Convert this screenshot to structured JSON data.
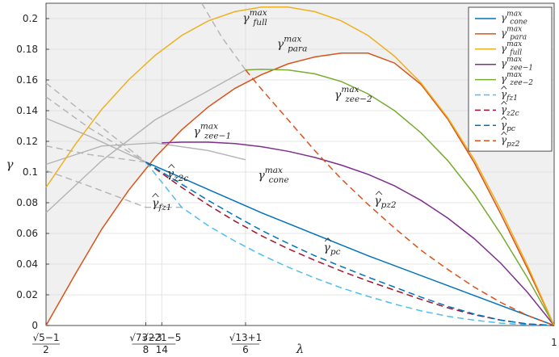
{
  "chart_data": {
    "type": "line",
    "xlabel": "λ",
    "ylabel": "γ",
    "xlim": [
      0.618,
      1.0
    ],
    "ylim": [
      0,
      0.21
    ],
    "grid": true,
    "legend_position": "top-right",
    "x_tick_labels": [
      {
        "x": 0.618,
        "num": "√5−1",
        "den": "2"
      },
      {
        "x": 0.693,
        "num": "√73−3",
        "den": "8"
      },
      {
        "x": 0.705,
        "num": "√221−5",
        "den": "14"
      },
      {
        "x": 0.768,
        "num": "√13+1",
        "den": "6"
      },
      {
        "x": 1.0,
        "num": "1",
        "den": ""
      }
    ],
    "y_ticks": [
      0,
      0.02,
      0.04,
      0.06,
      0.08,
      0.1,
      0.12,
      0.14,
      0.16,
      0.18,
      0.2
    ],
    "y_tick_labels": [
      "0",
      "0.02",
      "0.04",
      "0.06",
      "0.08",
      "0.1",
      "0.12",
      "0.14",
      "0.16",
      "0.18",
      "0.2"
    ],
    "series": [
      {
        "name": "γcone max",
        "base": "γ",
        "sub": "cone",
        "sup": "max",
        "hat": false,
        "color": "#0072BD",
        "dash": false,
        "x": [
          0.693,
          0.78,
          0.86,
          0.94,
          1.0
        ],
        "y": [
          0.1065,
          0.0735,
          0.0455,
          0.0195,
          0.0
        ]
      },
      {
        "name": "γpara max",
        "base": "γ",
        "sub": "para",
        "sup": "max",
        "hat": false,
        "color": "#D95319",
        "dash": false,
        "x": [
          0.618,
          0.64,
          0.66,
          0.68,
          0.7,
          0.72,
          0.74,
          0.76,
          0.78,
          0.8,
          0.82,
          0.84,
          0.86,
          0.88,
          0.9,
          0.92,
          0.94,
          0.96,
          0.98,
          1.0
        ],
        "y": [
          0.0,
          0.0335,
          0.063,
          0.088,
          0.1095,
          0.1275,
          0.1425,
          0.1545,
          0.1635,
          0.1705,
          0.175,
          0.1775,
          0.1775,
          0.171,
          0.157,
          0.1345,
          0.106,
          0.0725,
          0.037,
          0.0
        ]
      },
      {
        "name": "γfull max",
        "base": "γ",
        "sub": "full",
        "sup": "max",
        "hat": false,
        "color": "#EDB120",
        "dash": false,
        "x": [
          0.618,
          0.64,
          0.66,
          0.68,
          0.7,
          0.72,
          0.74,
          0.76,
          0.78,
          0.8,
          0.82,
          0.84,
          0.86,
          0.88,
          0.9,
          0.92,
          0.94,
          0.96,
          0.98,
          1.0
        ],
        "y": [
          0.09,
          0.118,
          0.141,
          0.16,
          0.176,
          0.189,
          0.1985,
          0.2045,
          0.2075,
          0.2075,
          0.2045,
          0.1985,
          0.189,
          0.1755,
          0.158,
          0.1355,
          0.108,
          0.075,
          0.039,
          0.0
        ]
      },
      {
        "name": "γzee−1 max",
        "base": "γ",
        "sub": "zee−1",
        "sup": "max",
        "hat": false,
        "color": "#7E2F8E",
        "dash": false,
        "x": [
          0.705,
          0.72,
          0.74,
          0.76,
          0.78,
          0.8,
          0.82,
          0.84,
          0.86,
          0.88,
          0.9,
          0.92,
          0.94,
          0.96,
          0.98,
          1.0
        ],
        "y": [
          0.119,
          0.1195,
          0.1195,
          0.1185,
          0.1165,
          0.1135,
          0.1095,
          0.1045,
          0.0985,
          0.091,
          0.0815,
          0.07,
          0.0565,
          0.0405,
          0.0215,
          0.0
        ]
      },
      {
        "name": "γzee−2 max",
        "base": "γ",
        "sub": "zee−2",
        "sup": "max",
        "hat": false,
        "color": "#77AC30",
        "dash": false,
        "x": [
          0.768,
          0.78,
          0.8,
          0.82,
          0.84,
          0.86,
          0.88,
          0.9,
          0.92,
          0.94,
          0.96,
          0.98,
          1.0
        ],
        "y": [
          0.1665,
          0.167,
          0.1665,
          0.164,
          0.159,
          0.151,
          0.14,
          0.1255,
          0.1075,
          0.0855,
          0.0595,
          0.031,
          0.0
        ]
      },
      {
        "name": "γ̂fz1",
        "base": "γ",
        "sub": "fz1",
        "sup": "",
        "hat": true,
        "color": "#4DBEEE",
        "dash": true,
        "x": [
          0.693,
          0.72,
          0.74,
          0.76,
          0.78,
          0.8,
          0.82,
          0.84,
          0.86,
          0.88,
          0.9,
          0.92,
          0.94,
          0.96,
          0.98,
          1.0
        ],
        "y": [
          0.1065,
          0.077,
          0.065,
          0.055,
          0.046,
          0.038,
          0.031,
          0.0245,
          0.019,
          0.014,
          0.0095,
          0.006,
          0.0035,
          0.0015,
          0.0005,
          0.0
        ]
      },
      {
        "name": "γ̂z2c",
        "base": "γ",
        "sub": "z2c",
        "sup": "",
        "hat": true,
        "color": "#A2142F",
        "dash": true,
        "x": [
          0.693,
          0.72,
          0.74,
          0.76,
          0.78,
          0.8,
          0.82,
          0.84,
          0.86,
          0.88,
          0.9,
          0.92,
          0.94,
          0.96,
          0.98,
          1.0
        ],
        "y": [
          0.1065,
          0.09,
          0.0785,
          0.068,
          0.0585,
          0.05,
          0.0425,
          0.0355,
          0.029,
          0.023,
          0.017,
          0.0115,
          0.007,
          0.0035,
          0.001,
          0.0
        ]
      },
      {
        "name": "γ̂pc",
        "base": "γ",
        "sub": "pc",
        "sup": "",
        "hat": true,
        "color": "#0072BD",
        "dash": true,
        "x": [
          0.693,
          0.72,
          0.74,
          0.76,
          0.78,
          0.8,
          0.82,
          0.84,
          0.86,
          0.88,
          0.9,
          0.92,
          0.94,
          0.96,
          0.98,
          1.0
        ],
        "y": [
          0.1065,
          0.092,
          0.0815,
          0.0715,
          0.062,
          0.0535,
          0.0455,
          0.0385,
          0.0315,
          0.025,
          0.0185,
          0.0125,
          0.0075,
          0.0035,
          0.001,
          0.0
        ]
      },
      {
        "name": "γ̂pz2",
        "base": "γ",
        "sub": "pz2",
        "sup": "",
        "hat": true,
        "color": "#D95319",
        "dash": true,
        "x": [
          0.768,
          0.78,
          0.8,
          0.82,
          0.84,
          0.86,
          0.88,
          0.9,
          0.92,
          0.94,
          0.96,
          0.98,
          1.0
        ],
        "y": [
          0.1665,
          0.154,
          0.134,
          0.114,
          0.0955,
          0.079,
          0.0635,
          0.049,
          0.0365,
          0.025,
          0.015,
          0.0065,
          0.0
        ]
      }
    ],
    "gray_series": [
      {
        "dash": false,
        "x": [
          0.618,
          0.66,
          0.7,
          0.74,
          0.768
        ],
        "y": [
          0.105,
          0.117,
          0.119,
          0.114,
          0.108
        ]
      },
      {
        "dash": false,
        "x": [
          0.618,
          0.66,
          0.7,
          0.74,
          0.768
        ],
        "y": [
          0.0735,
          0.1075,
          0.134,
          0.153,
          0.1665
        ]
      },
      {
        "dash": false,
        "x": [
          0.618,
          0.65,
          0.693
        ],
        "y": [
          0.135,
          0.1235,
          0.1065
        ]
      },
      {
        "dash": true,
        "x": [
          0.618,
          0.65,
          0.693
        ],
        "y": [
          0.158,
          0.136,
          0.1065
        ]
      },
      {
        "dash": true,
        "x": [
          0.618,
          0.65,
          0.693
        ],
        "y": [
          0.149,
          0.129,
          0.1065
        ]
      },
      {
        "dash": true,
        "x": [
          0.618,
          0.65,
          0.693
        ],
        "y": [
          0.117,
          0.1115,
          0.1065
        ]
      },
      {
        "dash": true,
        "x": [
          0.618,
          0.65,
          0.693,
          0.72
        ],
        "y": [
          0.101,
          0.091,
          0.077,
          0.077
        ]
      },
      {
        "dash": true,
        "x": [
          0.735,
          0.75,
          0.768
        ],
        "y": [
          0.21,
          0.188,
          0.1665
        ]
      }
    ],
    "annotations": [
      {
        "text": "γfull max",
        "base": "γ",
        "sub": "full",
        "sup": "max",
        "hat": false,
        "x": 0.775,
        "y": 0.198
      },
      {
        "text": "γpara max",
        "base": "γ",
        "sub": "para",
        "sup": "max",
        "hat": false,
        "x": 0.803,
        "y": 0.181
      },
      {
        "text": "γzee−2 max",
        "base": "γ",
        "sub": "zee−2",
        "sup": "max",
        "hat": false,
        "x": 0.849,
        "y": 0.148
      },
      {
        "text": "γzee−1 max",
        "base": "γ",
        "sub": "zee−1",
        "sup": "max",
        "hat": false,
        "x": 0.743,
        "y": 0.124
      },
      {
        "text": "γcone max",
        "base": "γ",
        "sub": "cone",
        "sup": "max",
        "hat": false,
        "x": 0.789,
        "y": 0.0955
      },
      {
        "text": "γ̂z2c",
        "base": "γ",
        "sub": "z2c",
        "sup": "",
        "hat": true,
        "x": 0.717,
        "y": 0.0965
      },
      {
        "text": "γ̂fz1",
        "base": "γ",
        "sub": "fz1",
        "sup": "",
        "hat": true,
        "x": 0.705,
        "y": 0.0775
      },
      {
        "text": "γ̂pz2",
        "base": "γ",
        "sub": "pz2",
        "sup": "",
        "hat": true,
        "x": 0.873,
        "y": 0.079
      },
      {
        "text": "γ̂pc",
        "base": "γ",
        "sub": "pc",
        "sup": "",
        "hat": true,
        "x": 0.833,
        "y": 0.0485
      }
    ]
  }
}
